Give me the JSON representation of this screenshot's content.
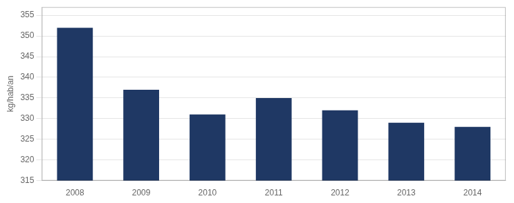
{
  "chart_data": {
    "type": "bar",
    "categories": [
      "2008",
      "2009",
      "2010",
      "2011",
      "2012",
      "2013",
      "2014"
    ],
    "values": [
      352,
      337,
      331,
      335,
      332,
      329,
      328
    ],
    "color": "#1F3864",
    "ylabel": "kg/hab/an",
    "ylim": [
      315,
      357
    ],
    "yticks": [
      315,
      320,
      325,
      330,
      335,
      340,
      345,
      350,
      355
    ],
    "grid": true
  }
}
